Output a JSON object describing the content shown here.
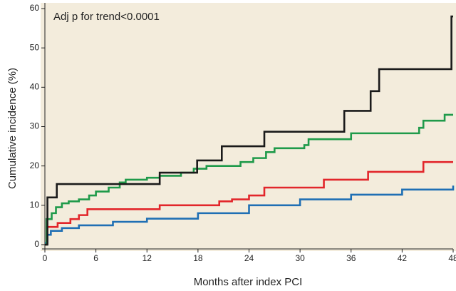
{
  "chart_data": {
    "type": "step-line",
    "annotation": "Adj p for trend<0.0001",
    "xlabel": "Months after index PCI",
    "ylabel": "Cumulative incidence (%)",
    "xlim": [
      0,
      48
    ],
    "ylim": [
      0,
      60
    ],
    "xticks": [
      0,
      6,
      12,
      18,
      24,
      30,
      36,
      42,
      48
    ],
    "yticks": [
      0,
      10,
      20,
      30,
      40,
      50,
      60
    ],
    "background": "#f3ecdc",
    "series": [
      {
        "color": "#1a1a1a",
        "x": [
          0,
          0.3,
          1.4,
          13.5,
          17.9,
          20.8,
          25.8,
          35.2,
          38.3,
          39.3,
          47.8,
          48
        ],
        "values": [
          0,
          12,
          15.4,
          18.3,
          21.4,
          25,
          28.7,
          34,
          39,
          44.6,
          58,
          58
        ]
      },
      {
        "color": "#1f9a4a",
        "x": [
          0,
          0.2,
          0.8,
          1.3,
          2,
          2.8,
          4,
          5.2,
          6,
          7.5,
          8.8,
          9.5,
          12,
          13.5,
          16,
          17.5,
          19,
          23,
          24.5,
          26,
          27,
          30.5,
          31,
          36,
          44,
          44.5,
          47,
          48
        ],
        "values": [
          0,
          6.5,
          8,
          9.5,
          10.5,
          11,
          11.5,
          12.5,
          13.5,
          14.5,
          15.8,
          16.5,
          17,
          17.5,
          18.3,
          19.3,
          20,
          21,
          22,
          23.5,
          24.5,
          25.3,
          26.8,
          28.3,
          29.7,
          31.5,
          33,
          33
        ]
      },
      {
        "color": "#e2262b",
        "x": [
          0,
          0.2,
          1.5,
          3,
          4,
          5,
          13.5,
          20.5,
          22,
          24,
          25.8,
          32.8,
          38,
          44.5,
          48
        ],
        "values": [
          0,
          4.5,
          5.5,
          6.5,
          7.5,
          9,
          10,
          11,
          11.5,
          12.5,
          14.5,
          16.5,
          18.5,
          21,
          21
        ]
      },
      {
        "color": "#1f6fb4",
        "x": [
          0,
          0.3,
          0.7,
          2,
          4,
          8,
          12,
          18,
          24,
          30,
          36,
          42,
          48
        ],
        "values": [
          0.5,
          2.5,
          3.5,
          4.2,
          4.9,
          5.8,
          6.6,
          8,
          10,
          11.5,
          12.7,
          14,
          15
        ]
      }
    ]
  }
}
